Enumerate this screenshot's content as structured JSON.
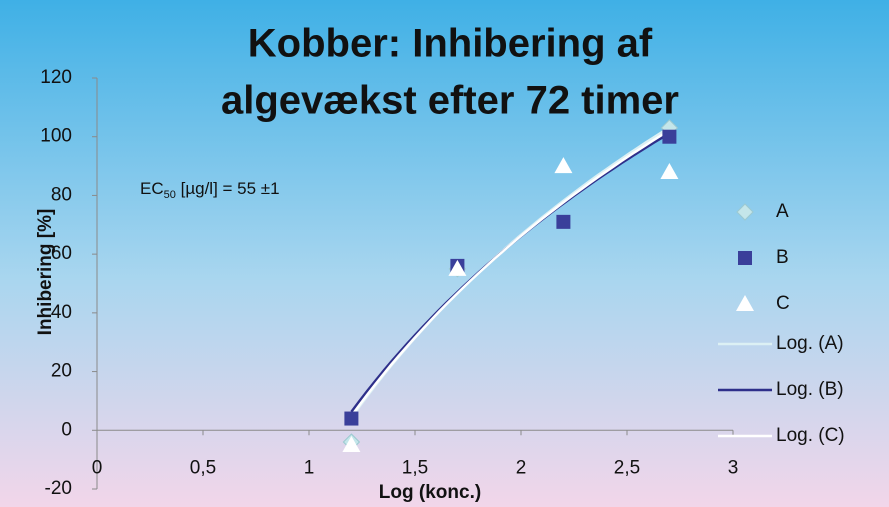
{
  "chart_data": {
    "type": "scatter",
    "title": [
      "Kobber: Inhibering af",
      "algevækst efter 72 timer"
    ],
    "xlabel": "Log (konc.)",
    "ylabel": "Inhibering [%]",
    "annotation": {
      "main": "EC",
      "sub": "50",
      "rest": " [µg/l] = 55 ±1"
    },
    "xlim": [
      0,
      3
    ],
    "ylim": [
      -20,
      120
    ],
    "xticks": [
      0,
      {
        "value": 0.5,
        "label": "0,5"
      },
      1,
      {
        "value": 1.5,
        "label": "1,5"
      },
      2,
      {
        "value": 2.5,
        "label": "2,5"
      },
      3
    ],
    "yticks": [
      -20,
      0,
      20,
      40,
      60,
      80,
      100,
      120
    ],
    "series": [
      {
        "name": "A",
        "marker": "diamond",
        "color": "#c4e6ea",
        "x": [
          1.2,
          1.7,
          2.7
        ],
        "values": [
          -4,
          55,
          103
        ]
      },
      {
        "name": "B",
        "marker": "square",
        "color": "#3a3f9a",
        "x": [
          1.2,
          1.7,
          2.2,
          2.7
        ],
        "values": [
          4,
          56,
          71,
          100
        ]
      },
      {
        "name": "C",
        "marker": "triangle",
        "color": "#ffffff",
        "x": [
          1.2,
          1.7,
          2.2,
          2.7
        ],
        "values": [
          -5,
          55,
          90,
          88
        ]
      }
    ],
    "trendlines": [
      {
        "name": "Log. (A)",
        "color": "#dcf0f4",
        "x": [
          1.2,
          2.7
        ],
        "coef": [
          122,
          -18
        ]
      },
      {
        "name": "Log. (B)",
        "color": "#2e2f8a",
        "x": [
          1.2,
          2.7
        ],
        "coef": [
          117,
          -15
        ]
      },
      {
        "name": "Log. (C)",
        "color": "#ffffff",
        "x": [
          1.2,
          2.7
        ],
        "coef": [
          120,
          -17
        ]
      }
    ]
  }
}
